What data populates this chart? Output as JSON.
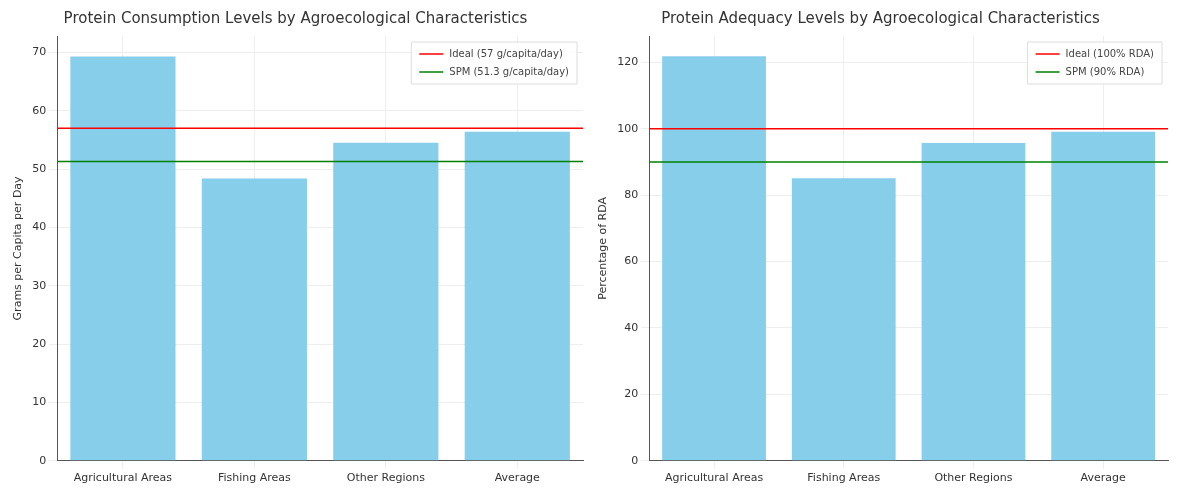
{
  "chart_data": [
    {
      "type": "bar",
      "title": "Protein Consumption Levels by Agroecological Characteristics",
      "ylabel": "Grams per Capita per Day",
      "categories": [
        "Agricultural Areas",
        "Fishing Areas",
        "Other Regions",
        "Average"
      ],
      "values": [
        69.3,
        48.4,
        54.5,
        56.4
      ],
      "color": "#87ceeb",
      "ylim": [
        0,
        72.8
      ],
      "yticks": [
        0,
        10,
        20,
        30,
        40,
        50,
        60,
        70
      ],
      "grid": true,
      "legend": "top right",
      "ref_lines": [
        {
          "axis": "y",
          "value": 57,
          "label": "Ideal (57 g/capita/day)",
          "color": "#ff0000"
        },
        {
          "axis": "y",
          "value": 51.3,
          "label": "SPM (51.3 g/capita/day)",
          "color": "#008000"
        }
      ]
    },
    {
      "type": "bar",
      "title": "Protein Adequacy Levels by Agroecological Characteristics",
      "ylabel": "Percentage of RDA",
      "categories": [
        "Agricultural Areas",
        "Fishing Areas",
        "Other Regions",
        "Average"
      ],
      "values": [
        121.8,
        85.1,
        95.7,
        99.1
      ],
      "color": "#87ceeb",
      "ylim": [
        0,
        127.9
      ],
      "yticks": [
        0,
        20,
        40,
        60,
        80,
        100,
        120
      ],
      "grid": true,
      "legend": "top right",
      "ref_lines": [
        {
          "axis": "y",
          "value": 100,
          "label": "Ideal (100% RDA)",
          "color": "#ff0000"
        },
        {
          "axis": "y",
          "value": 90,
          "label": "SPM (90% RDA)",
          "color": "#008000"
        }
      ]
    }
  ]
}
